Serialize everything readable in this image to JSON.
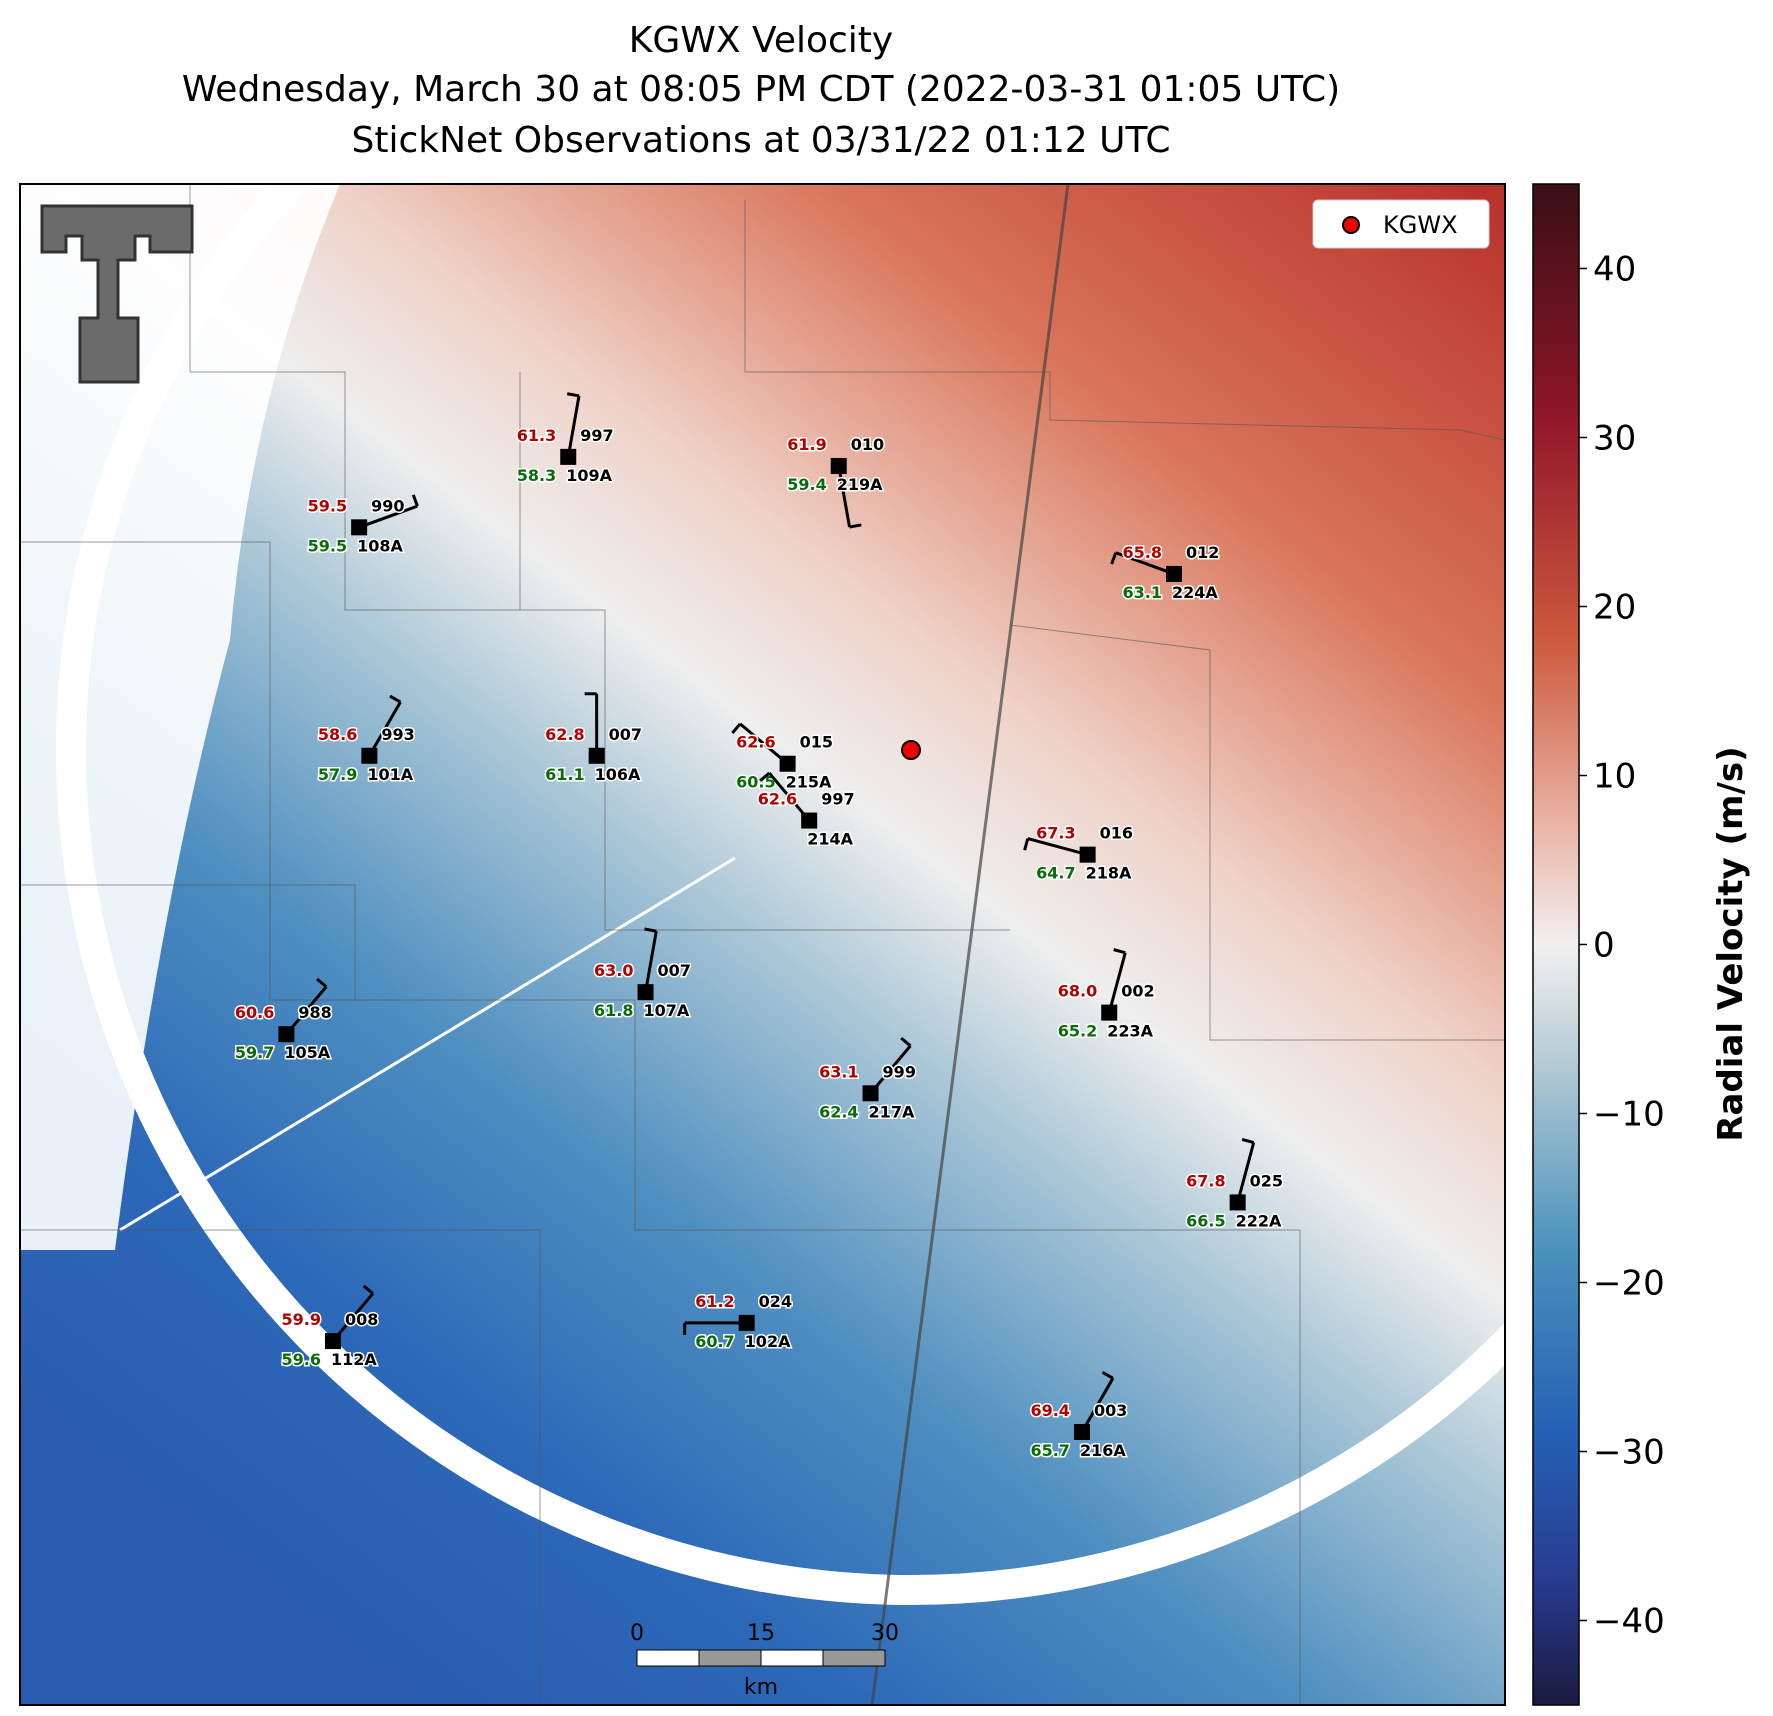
{
  "header": {
    "title": [
      "KGWX Velocity",
      "Wednesday, March 30 at 08:05 PM CDT (2022-03-31 01:05 UTC)",
      "StickNet Observations at 03/31/22 01:12 UTC"
    ]
  },
  "legend": {
    "label": "KGWX"
  },
  "colorbar": {
    "label": "Radial Velocity (m/s)",
    "lim": [
      -45,
      45
    ],
    "ticks": [
      40,
      30,
      20,
      10,
      0,
      {
        "value": -10,
        "label": "−10"
      },
      {
        "value": -20,
        "label": "−20"
      },
      {
        "value": -30,
        "label": "−30"
      },
      {
        "value": -40,
        "label": "−40"
      }
    ]
  },
  "scale_bar": {
    "labels": [
      "0",
      "15",
      "30"
    ],
    "unit": "km"
  },
  "stations": [
    {
      "temp": "61.3",
      "dew": "58.3",
      "pres": "997",
      "id": "109A"
    },
    {
      "temp": "61.9",
      "dew": "59.4",
      "pres": "010",
      "id": "219A"
    },
    {
      "temp": "59.5",
      "dew": "59.5",
      "pres": "990",
      "id": "108A"
    },
    {
      "temp": "65.8",
      "dew": "63.1",
      "pres": "012",
      "id": "224A"
    },
    {
      "temp": "58.6",
      "dew": "57.9",
      "pres": "993",
      "id": "101A"
    },
    {
      "temp": "62.8",
      "dew": "61.1",
      "pres": "007",
      "id": "106A"
    },
    {
      "temp": "62.6",
      "dew": "60.5",
      "pres": "015",
      "id": "215A"
    },
    {
      "temp": "62.6",
      "pres": "997",
      "id": "214A"
    },
    {
      "temp": "67.3",
      "dew": "64.7",
      "pres": "016",
      "id": "218A"
    },
    {
      "temp": "63.0",
      "dew": "61.8",
      "pres": "007",
      "id": "107A"
    },
    {
      "temp": "60.6",
      "dew": "59.7",
      "pres": "988",
      "id": "105A"
    },
    {
      "temp": "68.0",
      "dew": "65.2",
      "pres": "002",
      "id": "223A"
    },
    {
      "temp": "63.1",
      "dew": "62.4",
      "pres": "999",
      "id": "217A"
    },
    {
      "temp": "67.8",
      "dew": "66.5",
      "pres": "025",
      "id": "222A"
    },
    {
      "temp": "61.2",
      "dew": "60.7",
      "pres": "024",
      "id": "102A"
    },
    {
      "temp": "59.9",
      "dew": "59.6",
      "pres": "008",
      "id": "112A"
    },
    {
      "temp": "69.4",
      "dew": "65.7",
      "pres": "003",
      "id": "216A"
    }
  ]
}
